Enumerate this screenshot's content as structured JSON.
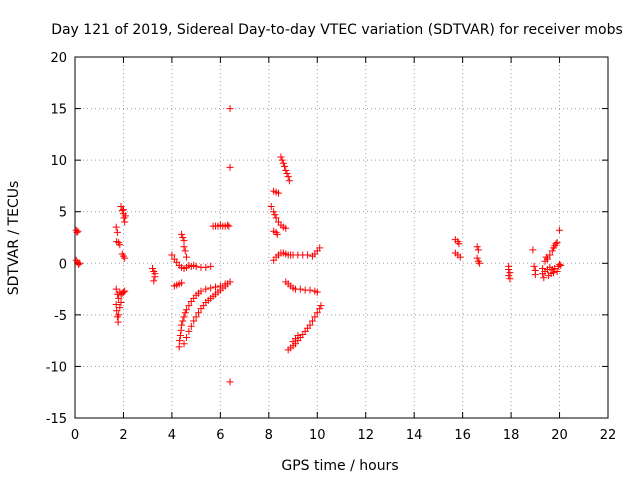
{
  "chart_data": {
    "type": "scatter",
    "title": "Day 121 of 2019, Sidereal Day-to-day VTEC variation (SDTVAR) for receiver mobs",
    "xlabel": "GPS time / hours",
    "ylabel": "SDTVAR / TECUs",
    "xlim": [
      0,
      22
    ],
    "ylim": [
      -15,
      20
    ],
    "xticks": [
      0,
      2,
      4,
      6,
      8,
      10,
      12,
      14,
      16,
      18,
      20,
      22
    ],
    "yticks": [
      -15,
      -10,
      -5,
      0,
      5,
      10,
      15,
      20
    ],
    "grid": true,
    "marker": "+",
    "color": "#ff0000",
    "series": [
      {
        "name": "SDTVAR",
        "points": [
          [
            0.05,
            3.2
          ],
          [
            0.08,
            3.0
          ],
          [
            0.12,
            3.1
          ],
          [
            0.05,
            0.3
          ],
          [
            0.1,
            0.1
          ],
          [
            0.15,
            -0.1
          ],
          [
            0.2,
            0.0
          ],
          [
            1.7,
            3.5
          ],
          [
            1.75,
            3.0
          ],
          [
            1.72,
            2.1
          ],
          [
            1.8,
            2.0
          ],
          [
            1.85,
            1.8
          ],
          [
            1.9,
            5.5
          ],
          [
            1.95,
            5.1
          ],
          [
            2.0,
            4.8
          ],
          [
            2.02,
            4.4
          ],
          [
            2.05,
            4.0
          ],
          [
            2.0,
            5.2
          ],
          [
            2.08,
            4.6
          ],
          [
            1.95,
            0.9
          ],
          [
            2.0,
            0.7
          ],
          [
            2.05,
            0.5
          ],
          [
            1.7,
            -2.5
          ],
          [
            1.75,
            -3.0
          ],
          [
            1.8,
            -3.4
          ],
          [
            1.85,
            -2.8
          ],
          [
            1.9,
            -3.0
          ],
          [
            1.95,
            -2.9
          ],
          [
            2.0,
            -2.8
          ],
          [
            2.05,
            -2.7
          ],
          [
            1.7,
            -4.0
          ],
          [
            1.72,
            -4.6
          ],
          [
            1.75,
            -5.2
          ],
          [
            1.78,
            -5.7
          ],
          [
            1.8,
            -5.0
          ],
          [
            1.85,
            -4.3
          ],
          [
            1.9,
            -3.8
          ],
          [
            3.2,
            -0.5
          ],
          [
            3.25,
            -0.8
          ],
          [
            3.3,
            -1.0
          ],
          [
            3.25,
            -1.7
          ],
          [
            3.3,
            -1.3
          ],
          [
            4.0,
            0.8
          ],
          [
            4.1,
            0.4
          ],
          [
            4.2,
            0.1
          ],
          [
            4.3,
            -0.2
          ],
          [
            4.4,
            -0.4
          ],
          [
            4.5,
            -0.5
          ],
          [
            4.6,
            -0.4
          ],
          [
            4.7,
            -0.2
          ],
          [
            4.8,
            -0.3
          ],
          [
            4.9,
            -0.2
          ],
          [
            5.0,
            -0.3
          ],
          [
            5.2,
            -0.4
          ],
          [
            5.4,
            -0.4
          ],
          [
            5.6,
            -0.3
          ],
          [
            4.4,
            2.8
          ],
          [
            4.45,
            2.5
          ],
          [
            4.5,
            2.2
          ],
          [
            4.5,
            1.6
          ],
          [
            4.55,
            1.2
          ],
          [
            4.6,
            0.6
          ],
          [
            4.1,
            -2.2
          ],
          [
            4.2,
            -2.1
          ],
          [
            4.3,
            -2.0
          ],
          [
            4.4,
            -1.9
          ],
          [
            4.3,
            -8.1
          ],
          [
            4.32,
            -7.5
          ],
          [
            4.35,
            -7.0
          ],
          [
            4.38,
            -6.5
          ],
          [
            4.4,
            -6.0
          ],
          [
            4.45,
            -5.6
          ],
          [
            4.5,
            -5.2
          ],
          [
            4.55,
            -4.8
          ],
          [
            4.6,
            -4.5
          ],
          [
            4.7,
            -4.1
          ],
          [
            4.8,
            -3.7
          ],
          [
            4.9,
            -3.4
          ],
          [
            5.0,
            -3.1
          ],
          [
            5.1,
            -2.9
          ],
          [
            5.2,
            -2.7
          ],
          [
            5.4,
            -2.5
          ],
          [
            5.6,
            -2.4
          ],
          [
            5.8,
            -2.3
          ],
          [
            6.0,
            -2.2
          ],
          [
            6.2,
            -2.0
          ],
          [
            6.4,
            -1.8
          ],
          [
            4.5,
            -7.8
          ],
          [
            4.6,
            -7.2
          ],
          [
            4.7,
            -6.6
          ],
          [
            4.8,
            -6.1
          ],
          [
            4.9,
            -5.6
          ],
          [
            5.0,
            -5.2
          ],
          [
            5.1,
            -4.8
          ],
          [
            5.2,
            -4.4
          ],
          [
            5.3,
            -4.1
          ],
          [
            5.4,
            -3.8
          ],
          [
            5.5,
            -3.6
          ],
          [
            5.6,
            -3.4
          ],
          [
            5.7,
            -3.2
          ],
          [
            5.8,
            -3.0
          ],
          [
            5.9,
            -2.8
          ],
          [
            6.0,
            -2.6
          ],
          [
            6.1,
            -2.4
          ],
          [
            6.2,
            -2.2
          ],
          [
            6.3,
            -2.0
          ],
          [
            5.7,
            3.6
          ],
          [
            5.8,
            3.6
          ],
          [
            5.9,
            3.6
          ],
          [
            6.0,
            3.7
          ],
          [
            6.1,
            3.6
          ],
          [
            6.2,
            3.6
          ],
          [
            6.3,
            3.7
          ],
          [
            6.35,
            3.6
          ],
          [
            6.4,
            15.0
          ],
          [
            6.4,
            9.3
          ],
          [
            6.4,
            -11.5
          ],
          [
            8.1,
            5.5
          ],
          [
            8.2,
            5.0
          ],
          [
            8.25,
            4.7
          ],
          [
            8.3,
            4.4
          ],
          [
            8.4,
            4.0
          ],
          [
            8.5,
            3.7
          ],
          [
            8.6,
            3.5
          ],
          [
            8.7,
            3.4
          ],
          [
            8.2,
            7.0
          ],
          [
            8.3,
            6.9
          ],
          [
            8.4,
            6.8
          ],
          [
            8.5,
            10.3
          ],
          [
            8.55,
            10.0
          ],
          [
            8.6,
            9.7
          ],
          [
            8.65,
            9.4
          ],
          [
            8.7,
            9.0
          ],
          [
            8.75,
            8.7
          ],
          [
            8.8,
            8.4
          ],
          [
            8.85,
            8.0
          ],
          [
            8.2,
            0.3
          ],
          [
            8.3,
            0.6
          ],
          [
            8.4,
            0.8
          ],
          [
            8.5,
            1.0
          ],
          [
            8.6,
            1.0
          ],
          [
            8.7,
            0.9
          ],
          [
            8.8,
            0.8
          ],
          [
            8.9,
            0.8
          ],
          [
            9.0,
            0.8
          ],
          [
            9.2,
            0.8
          ],
          [
            9.4,
            0.8
          ],
          [
            9.6,
            0.8
          ],
          [
            9.8,
            0.7
          ],
          [
            9.9,
            0.9
          ],
          [
            10.0,
            1.2
          ],
          [
            10.1,
            1.5
          ],
          [
            8.2,
            3.1
          ],
          [
            8.3,
            3.0
          ],
          [
            8.35,
            2.8
          ],
          [
            8.7,
            -1.8
          ],
          [
            8.8,
            -2.0
          ],
          [
            8.9,
            -2.2
          ],
          [
            9.0,
            -2.4
          ],
          [
            9.1,
            -2.5
          ],
          [
            9.3,
            -2.5
          ],
          [
            9.5,
            -2.6
          ],
          [
            9.7,
            -2.6
          ],
          [
            9.9,
            -2.7
          ],
          [
            10.0,
            -2.8
          ],
          [
            8.8,
            -8.4
          ],
          [
            8.9,
            -8.2
          ],
          [
            9.0,
            -8.0
          ],
          [
            9.1,
            -7.8
          ],
          [
            9.2,
            -7.5
          ],
          [
            9.3,
            -7.2
          ],
          [
            9.4,
            -6.9
          ],
          [
            9.5,
            -6.6
          ],
          [
            9.6,
            -6.3
          ],
          [
            9.7,
            -6.0
          ],
          [
            9.8,
            -5.6
          ],
          [
            9.9,
            -5.2
          ],
          [
            10.0,
            -4.8
          ],
          [
            10.1,
            -4.4
          ],
          [
            10.15,
            -4.1
          ],
          [
            9.0,
            -7.6
          ],
          [
            9.1,
            -7.3
          ],
          [
            9.2,
            -7.0
          ],
          [
            15.7,
            2.3
          ],
          [
            15.8,
            2.1
          ],
          [
            15.85,
            1.9
          ],
          [
            15.7,
            1.0
          ],
          [
            15.8,
            0.8
          ],
          [
            15.9,
            0.6
          ],
          [
            16.6,
            1.6
          ],
          [
            16.65,
            1.3
          ],
          [
            16.6,
            0.5
          ],
          [
            16.65,
            0.2
          ],
          [
            16.7,
            0.0
          ],
          [
            17.9,
            -0.3
          ],
          [
            17.9,
            -0.6
          ],
          [
            17.95,
            -0.9
          ],
          [
            17.9,
            -1.2
          ],
          [
            17.95,
            -1.5
          ],
          [
            18.9,
            1.3
          ],
          [
            18.95,
            -0.3
          ],
          [
            19.0,
            -0.7
          ],
          [
            19.0,
            -1.1
          ],
          [
            19.3,
            -0.5
          ],
          [
            19.3,
            -1.0
          ],
          [
            19.35,
            -1.4
          ],
          [
            19.4,
            -0.8
          ],
          [
            19.4,
            0.2
          ],
          [
            19.45,
            0.6
          ],
          [
            19.5,
            0.4
          ],
          [
            19.5,
            -0.6
          ],
          [
            19.55,
            -1.2
          ],
          [
            19.6,
            0.8
          ],
          [
            19.6,
            -0.4
          ],
          [
            19.65,
            -1.0
          ],
          [
            19.7,
            1.2
          ],
          [
            19.7,
            -0.6
          ],
          [
            19.75,
            1.5
          ],
          [
            19.75,
            -0.9
          ],
          [
            19.8,
            1.7
          ],
          [
            19.8,
            -0.5
          ],
          [
            19.85,
            1.9
          ],
          [
            19.9,
            -0.8
          ],
          [
            19.9,
            2.0
          ],
          [
            19.95,
            -0.3
          ],
          [
            20.0,
            -0.1
          ],
          [
            20.05,
            -0.2
          ],
          [
            20.0,
            3.2
          ]
        ]
      }
    ]
  }
}
